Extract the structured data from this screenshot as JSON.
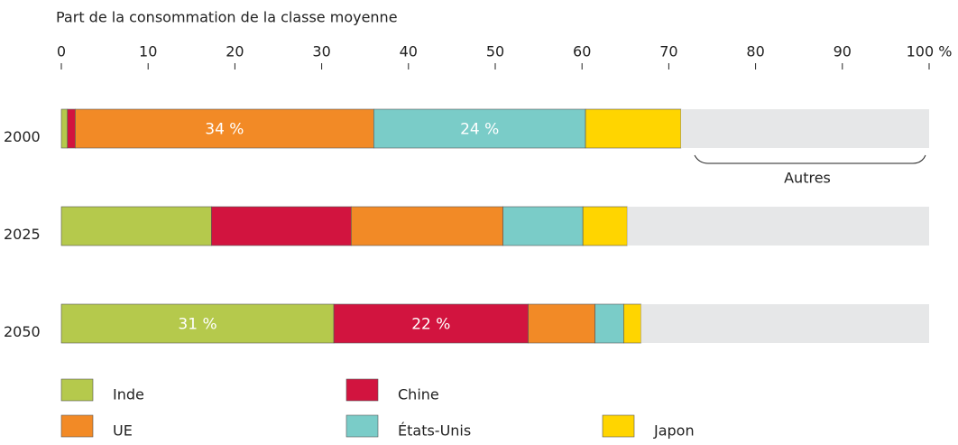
{
  "chart_data": {
    "type": "stacked-barh",
    "xlabel": "Part de la consommation de la classe moyenne",
    "categories": [
      "2000",
      "2025",
      "2050"
    ],
    "series": [
      {
        "name": "Inde",
        "color": "#b5c94c",
        "values": [
          0.7,
          17.3,
          31.4
        ],
        "value_labels": [
          null,
          null,
          "31 %"
        ]
      },
      {
        "name": "Chine",
        "color": "#d2143f",
        "values": [
          0.9,
          16.1,
          22.4
        ],
        "value_labels": [
          null,
          null,
          "22 %"
        ]
      },
      {
        "name": "UE",
        "color": "#f28a26",
        "values": [
          34.4,
          17.5,
          7.7
        ],
        "value_labels": [
          "34 %",
          null,
          null
        ]
      },
      {
        "name": "États-Unis",
        "color": "#7accc8",
        "values": [
          24.4,
          9.2,
          3.3
        ],
        "value_labels": [
          "24 %",
          null,
          null
        ]
      },
      {
        "name": "Japon",
        "color": "#ffd500",
        "values": [
          11.0,
          5.1,
          2.0
        ],
        "value_labels": [
          null,
          null,
          null
        ]
      },
      {
        "name": "Autres",
        "color": "#e6e7e8",
        "values": [
          28.6,
          34.8,
          33.2
        ],
        "value_labels": [
          null,
          null,
          null
        ]
      }
    ],
    "xlim": [
      0,
      100
    ],
    "xticks": [
      0,
      10,
      20,
      30,
      40,
      50,
      60,
      70,
      80,
      90,
      {
        "value": 100,
        "label": "100 %"
      }
    ]
  }
}
